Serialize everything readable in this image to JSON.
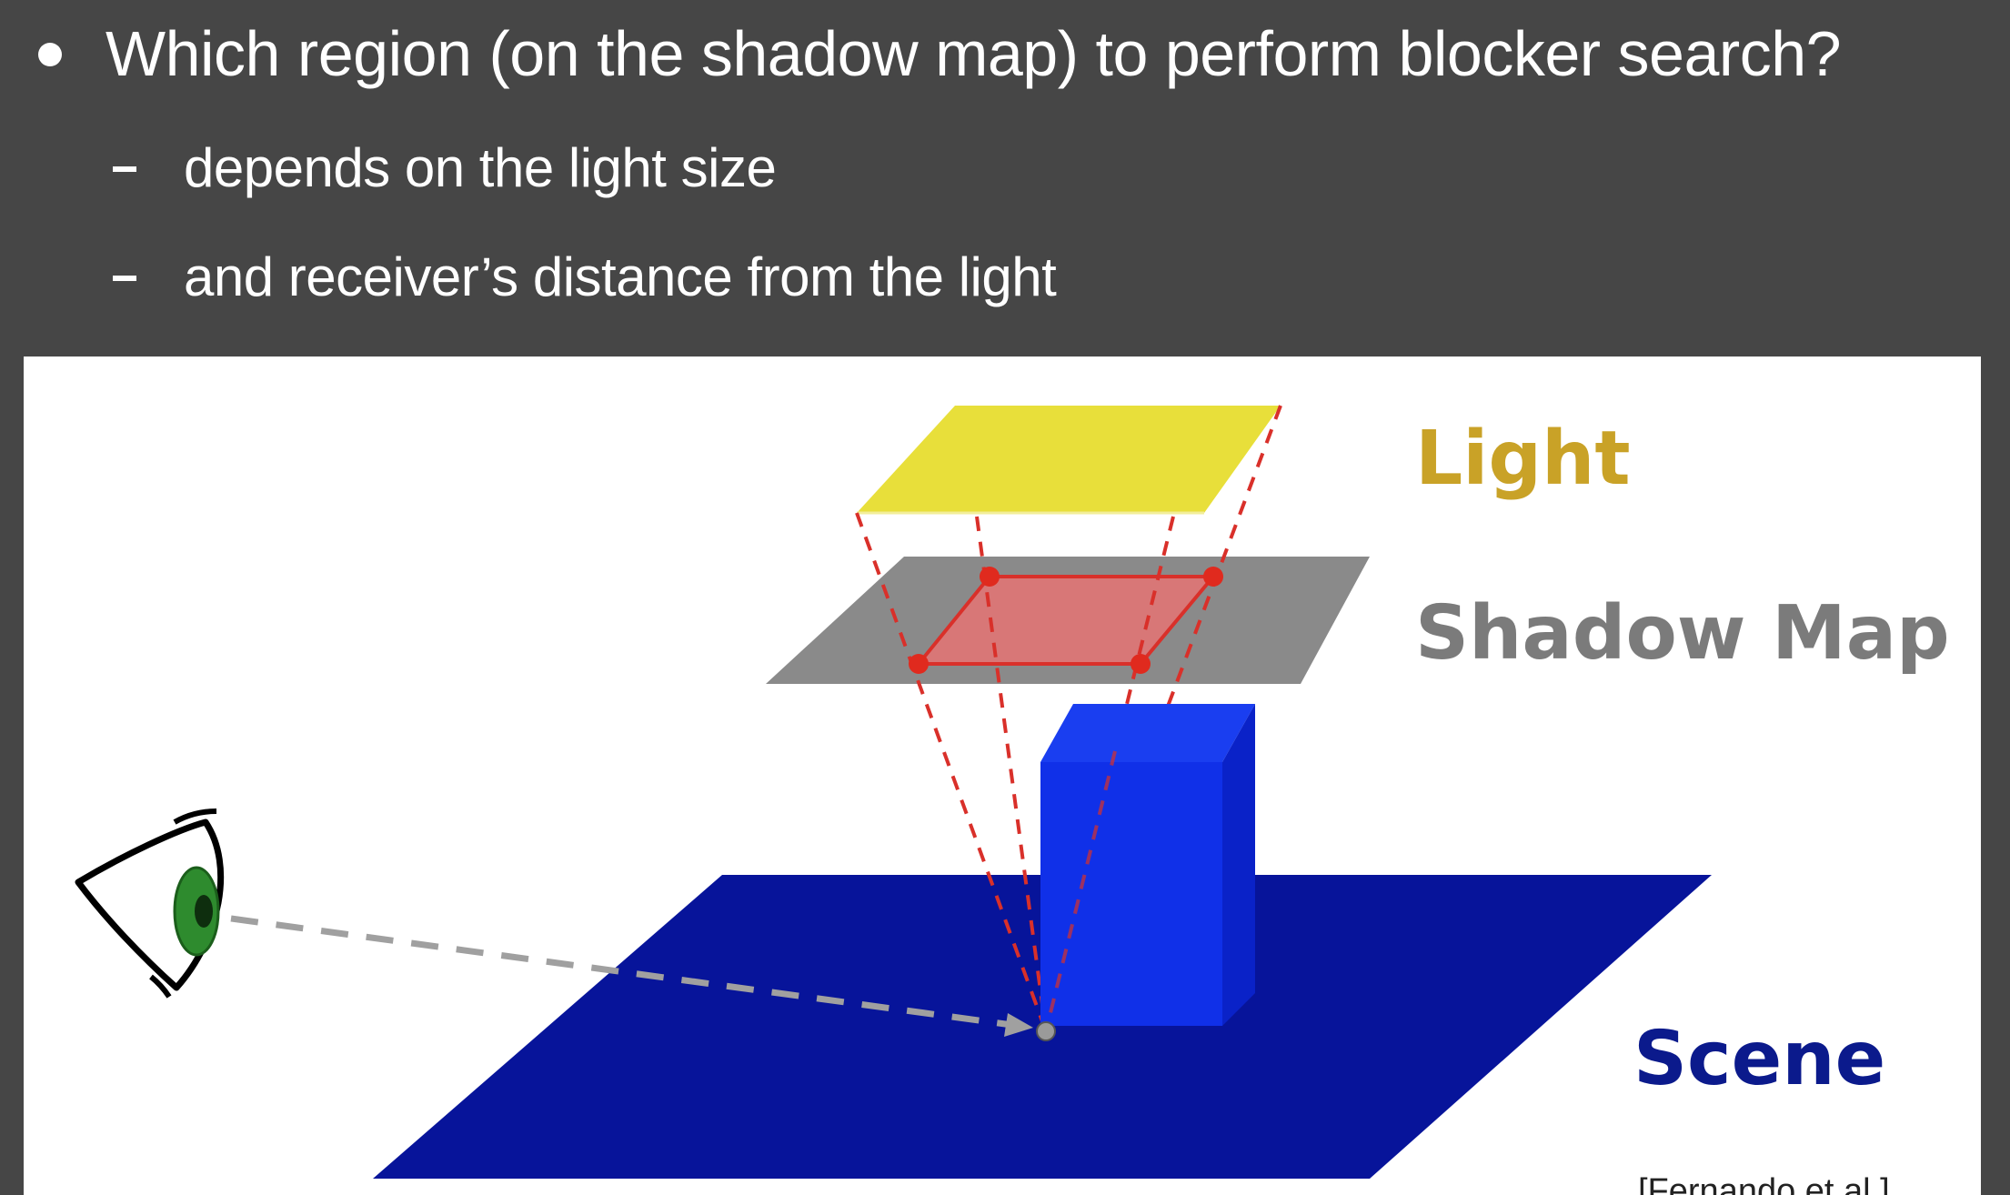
{
  "slide": {
    "bullet": "Which region (on the shadow map) to perform blocker search?",
    "sub_items": [
      "depends on the light size",
      "and receiver’s distance from the light"
    ]
  },
  "figure": {
    "labels": {
      "light": "Light",
      "shadow_map": "Shadow Map",
      "scene": "Scene",
      "citation": "[Fernando et al.]"
    },
    "colors": {
      "background": "#464646",
      "light": "#e8df3a",
      "light_label": "#c9a227",
      "shadow_map": "#8a8a8a",
      "search_region": "#e06a6a",
      "frustum_lines": "#d9302a",
      "blocker_front": "#1030e8",
      "scene_plane": "#07149a",
      "scene_label": "#0b1a8c",
      "eye_iris": "#2e8b2e",
      "view_ray": "#a0a0a0"
    },
    "icons": [
      "eye-icon"
    ]
  }
}
